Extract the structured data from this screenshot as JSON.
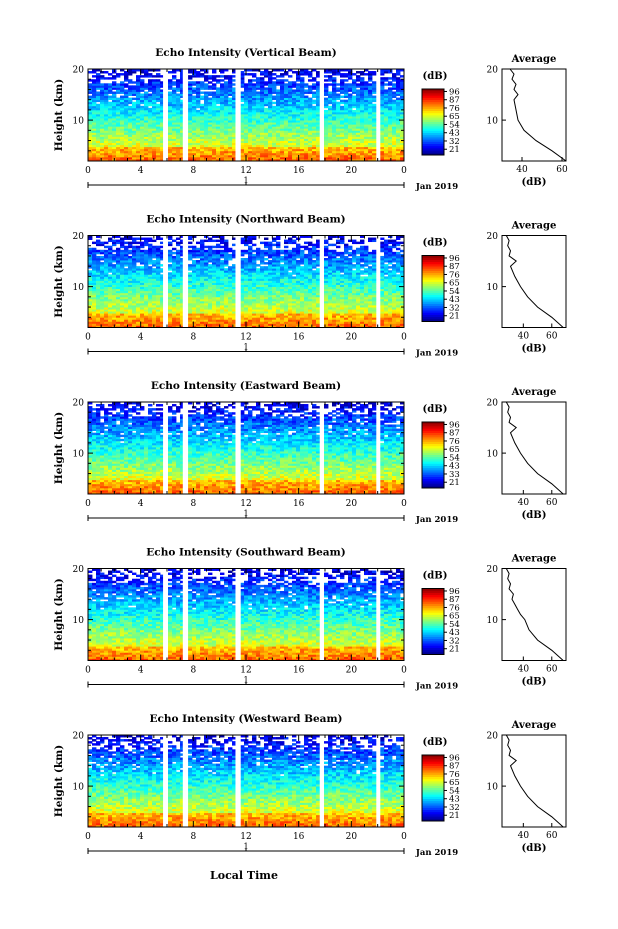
{
  "figure": {
    "xlabel": "Local Time",
    "date_label": "Jan 2019",
    "day_label": "1",
    "colorbar_unit": "(dB)",
    "average_title": "Average",
    "average_unit": "(dB)",
    "ylabel": "Height (km)"
  },
  "chart_data": [
    {
      "type": "heatmap",
      "title": "Echo Intensity (Vertical Beam)",
      "xlim": [
        0,
        24
      ],
      "xticks": [
        "0",
        "4",
        "8",
        "12",
        "16",
        "20",
        "0"
      ],
      "ylim": [
        2,
        20
      ],
      "yticks": [
        "10",
        "20"
      ],
      "colorbar_ticks": [
        "96",
        "87",
        "76",
        "65",
        "54",
        "43",
        "32",
        "21"
      ],
      "data_gaps_hours": [
        [
          5.7,
          6.0
        ],
        [
          7.2,
          7.6
        ],
        [
          11.2,
          11.6
        ],
        [
          17.6,
          17.9
        ],
        [
          21.9,
          22.2
        ]
      ],
      "average": {
        "xticks": [
          "40",
          "60"
        ],
        "xlim": [
          30,
          62
        ],
        "heights_km": [
          2,
          4,
          6,
          8,
          10,
          12,
          14,
          15,
          16,
          17,
          18,
          19,
          20
        ],
        "values_db": [
          62,
          55,
          47,
          41,
          38,
          37,
          36,
          38,
          36,
          37,
          35,
          36,
          34
        ]
      }
    },
    {
      "type": "heatmap",
      "title": "Echo Intensity (Northward Beam)",
      "xlim": [
        0,
        24
      ],
      "xticks": [
        "0",
        "4",
        "8",
        "12",
        "16",
        "20",
        "0"
      ],
      "ylim": [
        2,
        20
      ],
      "yticks": [
        "10",
        "20"
      ],
      "colorbar_ticks": [
        "96",
        "87",
        "76",
        "65",
        "54",
        "43",
        "32",
        "21"
      ],
      "data_gaps_hours": [
        [
          5.7,
          6.0
        ],
        [
          7.2,
          7.6
        ],
        [
          11.2,
          11.6
        ],
        [
          17.6,
          17.9
        ],
        [
          21.9,
          22.2
        ]
      ],
      "average": {
        "xticks": [
          "40",
          "60"
        ],
        "xlim": [
          25,
          70
        ],
        "heights_km": [
          2,
          4,
          6,
          8,
          10,
          12,
          14,
          15,
          16,
          17,
          18,
          19,
          20
        ],
        "values_db": [
          68,
          60,
          50,
          43,
          38,
          34,
          31,
          35,
          30,
          31,
          29,
          30,
          28
        ]
      }
    },
    {
      "type": "heatmap",
      "title": "Echo Intensity (Eastward Beam)",
      "xlim": [
        0,
        24
      ],
      "xticks": [
        "0",
        "4",
        "8",
        "12",
        "16",
        "20",
        "0"
      ],
      "ylim": [
        2,
        20
      ],
      "yticks": [
        "10",
        "20"
      ],
      "colorbar_ticks": [
        "96",
        "87",
        "76",
        "65",
        "54",
        "43",
        "33",
        "21"
      ],
      "data_gaps_hours": [
        [
          5.7,
          6.0
        ],
        [
          7.2,
          7.6
        ],
        [
          11.2,
          11.6
        ],
        [
          17.6,
          17.9
        ],
        [
          21.9,
          22.2
        ]
      ],
      "average": {
        "xticks": [
          "40",
          "60"
        ],
        "xlim": [
          25,
          70
        ],
        "heights_km": [
          2,
          4,
          6,
          8,
          10,
          12,
          14,
          15,
          16,
          17,
          18,
          19,
          20
        ],
        "values_db": [
          68,
          60,
          50,
          43,
          38,
          34,
          31,
          35,
          30,
          31,
          29,
          30,
          28
        ]
      }
    },
    {
      "type": "heatmap",
      "title": "Echo Intensity (Southward Beam)",
      "xlim": [
        0,
        24
      ],
      "xticks": [
        "0",
        "4",
        "8",
        "12",
        "16",
        "20",
        "0"
      ],
      "ylim": [
        2,
        20
      ],
      "yticks": [
        "10",
        "20"
      ],
      "colorbar_ticks": [
        "96",
        "87",
        "76",
        "65",
        "54",
        "43",
        "32",
        "21"
      ],
      "data_gaps_hours": [
        [
          5.7,
          6.0
        ],
        [
          7.2,
          7.6
        ],
        [
          11.2,
          11.6
        ],
        [
          17.6,
          17.9
        ],
        [
          21.9,
          22.2
        ]
      ],
      "average": {
        "xticks": [
          "40",
          "60"
        ],
        "xlim": [
          25,
          70
        ],
        "heights_km": [
          2,
          4,
          6,
          8,
          10,
          11,
          12,
          13,
          14,
          15,
          16,
          17,
          18,
          19,
          20
        ],
        "values_db": [
          68,
          60,
          50,
          44,
          41,
          38,
          36,
          34,
          32,
          33,
          30,
          31,
          29,
          30,
          28
        ]
      }
    },
    {
      "type": "heatmap",
      "title": "Echo Intensity (Westward Beam)",
      "xlim": [
        0,
        24
      ],
      "xticks": [
        "0",
        "4",
        "8",
        "12",
        "16",
        "20",
        "0"
      ],
      "ylim": [
        2,
        20
      ],
      "yticks": [
        "10",
        "20"
      ],
      "colorbar_ticks": [
        "96",
        "87",
        "76",
        "65",
        "54",
        "43",
        "32",
        "21"
      ],
      "data_gaps_hours": [
        [
          5.7,
          6.0
        ],
        [
          7.2,
          7.6
        ],
        [
          11.2,
          11.6
        ],
        [
          17.6,
          17.9
        ],
        [
          21.9,
          22.2
        ]
      ],
      "average": {
        "xticks": [
          "40",
          "60"
        ],
        "xlim": [
          25,
          70
        ],
        "heights_km": [
          2,
          4,
          6,
          8,
          10,
          12,
          14,
          15,
          16,
          17,
          18,
          19,
          20
        ],
        "values_db": [
          68,
          60,
          50,
          43,
          38,
          34,
          31,
          35,
          30,
          31,
          29,
          30,
          28
        ]
      }
    }
  ]
}
